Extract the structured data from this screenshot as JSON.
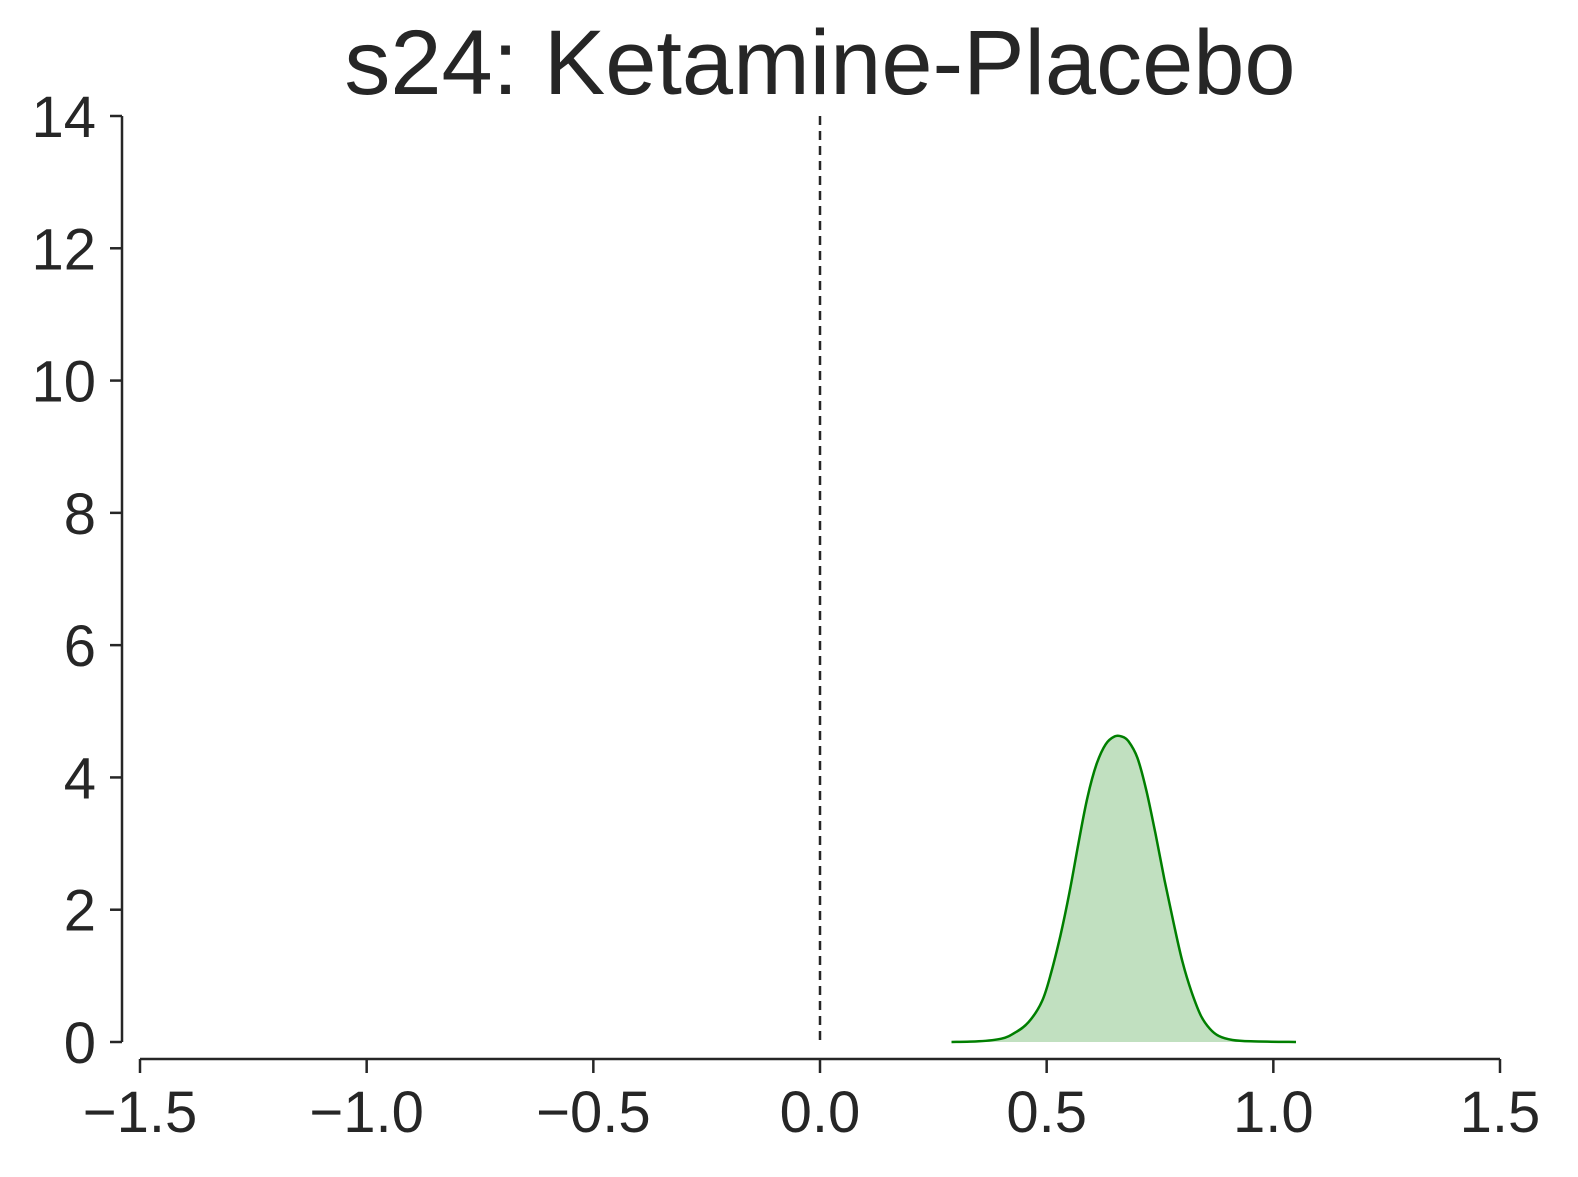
{
  "chart_data": {
    "type": "area",
    "title": "s24: Ketamine-Placebo",
    "xlabel": "",
    "ylabel": "",
    "xlim": [
      -1.5,
      1.5
    ],
    "ylim": [
      0,
      14
    ],
    "x_ticks": [
      -1.5,
      -1.0,
      -0.5,
      0.0,
      0.5,
      1.0,
      1.5
    ],
    "x_tick_labels": [
      "−1.5",
      "−1.0",
      "−0.5",
      "0.0",
      "0.5",
      "1.0",
      "1.5"
    ],
    "y_ticks": [
      0,
      2,
      4,
      6,
      8,
      10,
      12,
      14
    ],
    "y_tick_labels": [
      "0",
      "2",
      "4",
      "6",
      "8",
      "10",
      "12",
      "14"
    ],
    "reference_line_x": 0.0,
    "grid": false,
    "series": [
      {
        "color": "#007f00",
        "fill_color": "#c1e0c0",
        "x": [
          0.29,
          0.35,
          0.4,
          0.43,
          0.46,
          0.49,
          0.51,
          0.53,
          0.55,
          0.57,
          0.59,
          0.61,
          0.63,
          0.65,
          0.665,
          0.68,
          0.7,
          0.72,
          0.74,
          0.76,
          0.78,
          0.8,
          0.82,
          0.84,
          0.86,
          0.88,
          0.91,
          0.95,
          1.05
        ],
        "y": [
          0.0,
          0.01,
          0.05,
          0.14,
          0.3,
          0.62,
          1.05,
          1.6,
          2.25,
          3.0,
          3.7,
          4.2,
          4.5,
          4.62,
          4.62,
          4.55,
          4.3,
          3.8,
          3.15,
          2.45,
          1.8,
          1.2,
          0.75,
          0.4,
          0.2,
          0.09,
          0.03,
          0.01,
          0.0
        ]
      }
    ]
  }
}
